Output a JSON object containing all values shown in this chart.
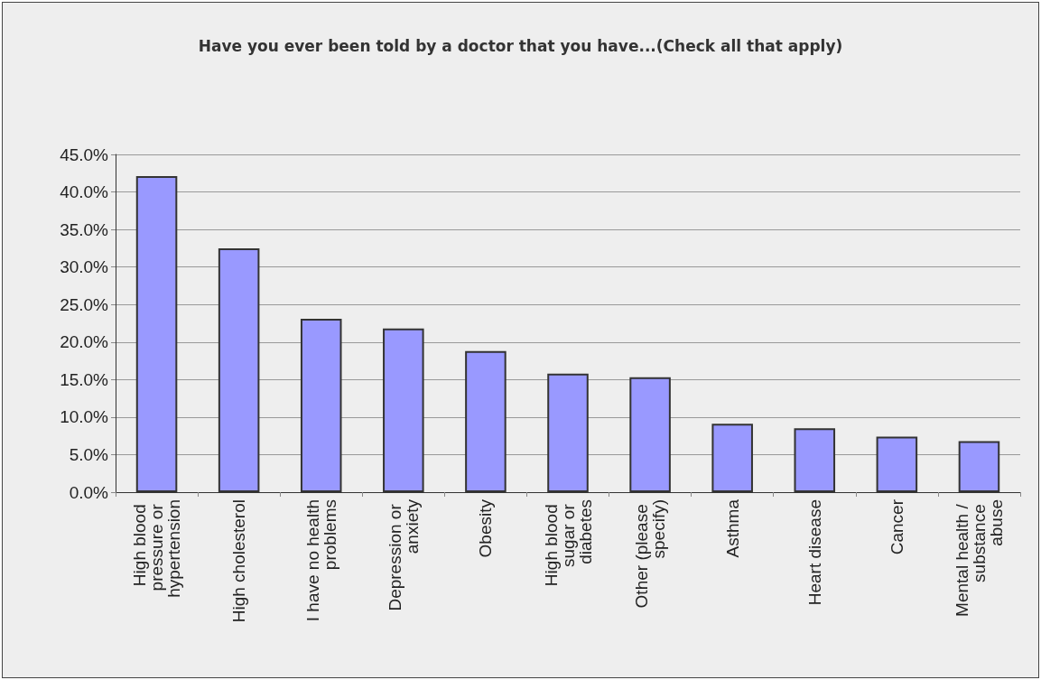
{
  "chart_data": {
    "type": "bar",
    "title": "Have you ever been told by a doctor that you have...(Check all that apply)",
    "categories": [
      "High blood pressure or hypertension",
      "High cholesterol",
      "I have no health problems",
      "Depression or anxiety",
      "Obesity",
      "High blood sugar or diabetes",
      "Other (please specify)",
      "Asthma",
      "Heart disease",
      "Cancer",
      "Mental health / substance abuse"
    ],
    "values": [
      42.1,
      32.5,
      23.1,
      21.8,
      18.8,
      15.8,
      15.3,
      9.1,
      8.5,
      7.4,
      6.8
    ],
    "color": "#9999ff",
    "ylim": [
      0,
      45
    ],
    "yticks": [
      {
        "value": 0,
        "label": "0.0%"
      },
      {
        "value": 5,
        "label": "5.0%"
      },
      {
        "value": 10,
        "label": "10.0%"
      },
      {
        "value": 15,
        "label": "15.0%"
      },
      {
        "value": 20,
        "label": "20.0%"
      },
      {
        "value": 25,
        "label": "25.0%"
      },
      {
        "value": 30,
        "label": "30.0%"
      },
      {
        "value": 35,
        "label": "35.0%"
      },
      {
        "value": 40,
        "label": "40.0%"
      },
      {
        "value": 45,
        "label": "45.0%"
      }
    ],
    "grid": "y"
  }
}
